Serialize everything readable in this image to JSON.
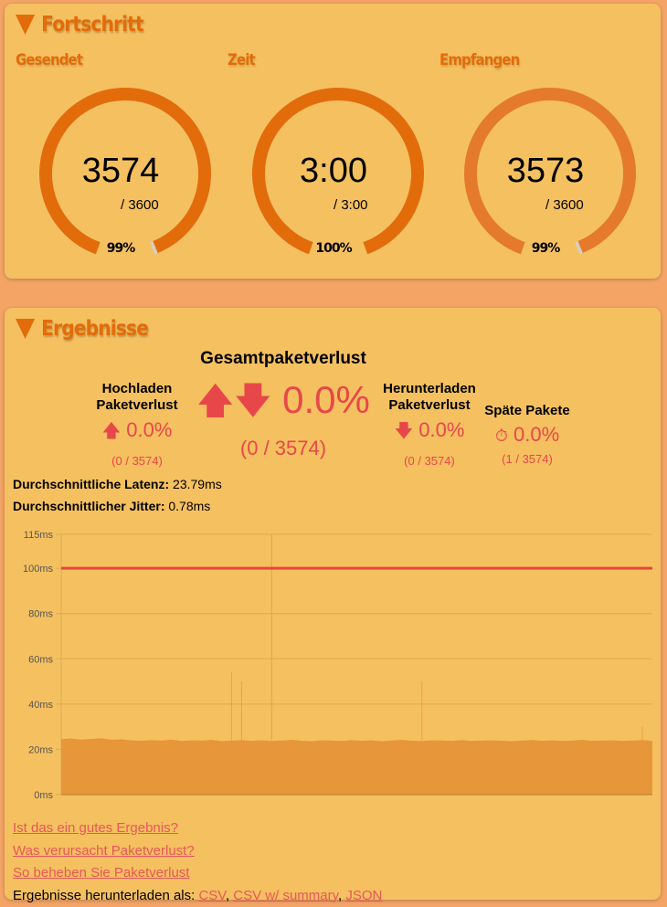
{
  "progress": {
    "title": "Fortschritt",
    "gauges": [
      {
        "label": "Gesendet",
        "value": "3574",
        "max": "/ 3600",
        "percent_label": "99%",
        "fraction": 0.9928,
        "color": "#e36c0a"
      },
      {
        "label": "Zeit",
        "value": "3:00",
        "max": "/ 3:00",
        "percent_label": "100%",
        "fraction": 1.0,
        "color": "#e36c0a"
      },
      {
        "label": "Empfangen",
        "value": "3573",
        "max": "/ 3600",
        "percent_label": "99%",
        "fraction": 0.9925,
        "color": "#e57a2c"
      }
    ]
  },
  "results": {
    "title": "Ergebnisse",
    "total": {
      "heading": "Gesamtpaketverlust",
      "value": "0.0%",
      "count": "(0 / 3574)"
    },
    "upload": {
      "heading1": "Hochladen",
      "heading2": "Paketverlust",
      "value": "0.0%",
      "count": "(0 / 3574)"
    },
    "download": {
      "heading1": "Herunterladen",
      "heading2": "Paketverlust",
      "value": "0.0%",
      "count": "(0 / 3574)"
    },
    "late": {
      "heading": "Späte Pakete",
      "value": "0.0%",
      "count": "(1 / 3574)"
    },
    "latency_label": "Durchschnittliche Latenz:",
    "latency_value": "23.79ms",
    "jitter_label": "Durchschnittlicher Jitter:",
    "jitter_value": "0.78ms",
    "links": [
      "Ist das ein gutes Ergebnis?",
      "Was verursacht Paketverlust?",
      "So beheben Sie Paketverlust"
    ],
    "download_prefix": "Ergebnisse herunterladen als:",
    "download_formats": [
      "CSV",
      "CSV w/ summary",
      "JSON"
    ]
  },
  "chart_data": {
    "type": "area",
    "ylim": [
      0,
      115
    ],
    "yticks": [
      "0ms",
      "20ms",
      "40ms",
      "60ms",
      "80ms",
      "100ms",
      "115ms"
    ],
    "ytick_values": [
      0,
      20,
      40,
      60,
      80,
      100,
      115
    ],
    "grid": true,
    "threshold": {
      "value": 100,
      "color": "#e8473a"
    },
    "series": [
      {
        "color": "#e8963a",
        "values": [
          24.5,
          24.8,
          24.3,
          24.6,
          24.9,
          24.2,
          24.4,
          24.0,
          23.8,
          24.1,
          23.9,
          24.3,
          23.7,
          24.0,
          23.9,
          24.2,
          23.6,
          23.9,
          24.1,
          23.8,
          24.0,
          23.7,
          23.9,
          24.2,
          23.8,
          23.6,
          24.0,
          23.9,
          23.7,
          24.1,
          23.8,
          24.0,
          23.6,
          23.9,
          24.2,
          23.8,
          23.7,
          24.0,
          23.9,
          23.8,
          24.1,
          23.7,
          23.9,
          24.0,
          23.8,
          23.6,
          23.9,
          24.1,
          23.8,
          24.0,
          23.7,
          23.9,
          24.2,
          23.8,
          23.9,
          24.0,
          23.7,
          23.9,
          24.1,
          23.8
        ]
      }
    ],
    "spikes": [
      {
        "index": 17,
        "value": 54
      },
      {
        "index": 18,
        "value": 50
      },
      {
        "index": 21,
        "value": 115
      },
      {
        "index": 36,
        "value": 50
      },
      {
        "index": 58,
        "value": 30
      }
    ]
  }
}
